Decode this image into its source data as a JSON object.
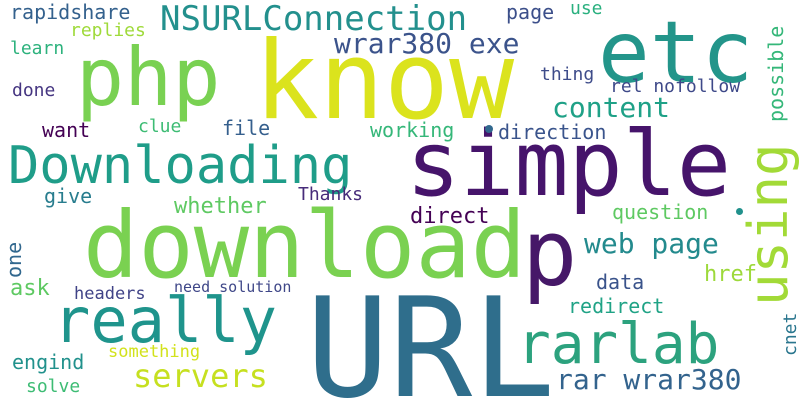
{
  "words": [
    {
      "id": "url",
      "text": "URL",
      "color": "#2f6e8c"
    },
    {
      "id": "know",
      "text": "know",
      "color": "#dbe31d"
    },
    {
      "id": "download",
      "text": "download",
      "color": "#7ad151"
    },
    {
      "id": "simple",
      "text": "simple",
      "color": "#46146b"
    },
    {
      "id": "etc",
      "text": "etc",
      "color": "#23958a"
    },
    {
      "id": "php",
      "text": "php",
      "color": "#79d152"
    },
    {
      "id": "downloading",
      "text": "Downloading",
      "color": "#1f9d89"
    },
    {
      "id": "p",
      "text": "p",
      "color": "#461868"
    },
    {
      "id": "using",
      "text": "using",
      "color": "#a2da37"
    },
    {
      "id": "really",
      "text": "really",
      "color": "#1f948c"
    },
    {
      "id": "rarlab",
      "text": "rarlab",
      "color": "#2ca27e"
    },
    {
      "id": "nsurlconnection",
      "text": "NSURLConnection",
      "color": "#23908d"
    },
    {
      "id": "wrar380-exe",
      "text": "wrar380 exe",
      "color": "#3b538b"
    },
    {
      "id": "content",
      "text": "content",
      "color": "#1fa187"
    },
    {
      "id": "rar-wrar380",
      "text": "rar wrar380",
      "color": "#33638d"
    },
    {
      "id": "servers",
      "text": "servers",
      "color": "#c6e020"
    },
    {
      "id": "web-page",
      "text": "web page",
      "color": "#238a8d"
    },
    {
      "id": "rapidshare",
      "text": "rapidshare",
      "color": "#34618d"
    },
    {
      "id": "page",
      "text": "page",
      "color": "#3c4f8a"
    },
    {
      "id": "use",
      "text": "use",
      "color": "#2ab07f"
    },
    {
      "id": "replies",
      "text": "replies",
      "color": "#9fda3a"
    },
    {
      "id": "learn",
      "text": "learn",
      "color": "#2db27d"
    },
    {
      "id": "done",
      "text": "done",
      "color": "#453581"
    },
    {
      "id": "want",
      "text": "want",
      "color": "#440154"
    },
    {
      "id": "clue",
      "text": "clue",
      "color": "#3dbc74"
    },
    {
      "id": "file",
      "text": "file",
      "color": "#355f8d"
    },
    {
      "id": "working",
      "text": "working",
      "color": "#35b779"
    },
    {
      "id": "direction",
      "text": "direction",
      "color": "#3a548c"
    },
    {
      "id": "thing",
      "text": "thing",
      "color": "#3e4c8a"
    },
    {
      "id": "rel-nofollow",
      "text": "rel nofollow",
      "color": "#3e4989"
    },
    {
      "id": "possible",
      "text": "possible",
      "color": "#35b779"
    },
    {
      "id": "give",
      "text": "give",
      "color": "#287d8e"
    },
    {
      "id": "thanks",
      "text": "Thanks",
      "color": "#472c7a"
    },
    {
      "id": "whether",
      "text": "whether",
      "color": "#5ec962"
    },
    {
      "id": "question",
      "text": "question",
      "color": "#5ec962"
    },
    {
      "id": "direct",
      "text": "direct",
      "color": "#440154"
    },
    {
      "id": "one",
      "text": "one",
      "color": "#31678e"
    },
    {
      "id": "data",
      "text": "data",
      "color": "#3a538b"
    },
    {
      "id": "href",
      "text": "href",
      "color": "#9dd93b"
    },
    {
      "id": "ask",
      "text": "ask",
      "color": "#5ec962"
    },
    {
      "id": "headers",
      "text": "headers",
      "color": "#404387"
    },
    {
      "id": "need-solution",
      "text": "need solution",
      "color": "#3f4788"
    },
    {
      "id": "redirect",
      "text": "redirect",
      "color": "#20a386"
    },
    {
      "id": "cnet",
      "text": "cnet",
      "color": "#2a768e"
    },
    {
      "id": "something",
      "text": "something",
      "color": "#d2e21b"
    },
    {
      "id": "engind",
      "text": "engind",
      "color": "#21918c"
    },
    {
      "id": "solve",
      "text": "solve",
      "color": "#3dbc74"
    }
  ],
  "dots": [
    {
      "id": "dot-1",
      "color": "#31688e"
    },
    {
      "id": "dot-2",
      "color": "#21918c"
    }
  ]
}
